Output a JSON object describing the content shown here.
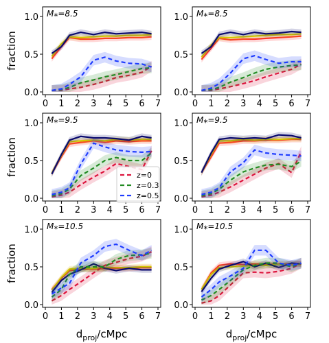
{
  "figure": {
    "ylabel": "fraction",
    "xlabel_main": "d",
    "xlabel_sub": "proj",
    "xlabel_tail": "/cMpc"
  },
  "legend": {
    "placement": "panel row 2 col 1, lower right",
    "entries": [
      {
        "label": "z=0",
        "color": "#dc143c"
      },
      {
        "label": "z=0.3",
        "color": "#228b22"
      },
      {
        "label": "z=0.5",
        "color": "#1e3cff"
      }
    ]
  },
  "colors": {
    "z0": "#dc143c",
    "z03": "#228b22",
    "z05": "#1e3cff",
    "solid_red": "#ff2a2a",
    "solid_yellow": "#d4c800",
    "solid_navy": "#0a0a6e"
  },
  "axes": {
    "xlim": [
      0,
      7
    ],
    "ylim": [
      0,
      1
    ],
    "xticks": [
      "0",
      "1",
      "2",
      "3",
      "4",
      "5",
      "6",
      "7"
    ],
    "yticks": [
      "0.0",
      "0.5",
      "1.0"
    ]
  },
  "chart_data": [
    {
      "type": "line",
      "row": 0,
      "col": 0,
      "annotation": "M⁎=8.5",
      "x": [
        0.4,
        1.0,
        1.5,
        2.2,
        3.0,
        3.7,
        4.4,
        5.2,
        6.0,
        6.6
      ],
      "solid": [
        {
          "color": "red",
          "values": [
            0.44,
            0.6,
            0.72,
            0.7,
            0.7,
            0.71,
            0.71,
            0.72,
            0.72,
            0.73
          ]
        },
        {
          "color": "yellow",
          "values": [
            0.47,
            0.64,
            0.73,
            0.72,
            0.73,
            0.74,
            0.74,
            0.75,
            0.75,
            0.76
          ]
        },
        {
          "color": "navy",
          "values": [
            0.51,
            0.6,
            0.75,
            0.79,
            0.76,
            0.79,
            0.77,
            0.78,
            0.79,
            0.77
          ]
        }
      ],
      "dashed": [
        {
          "color": "z0",
          "values": [
            0.02,
            0.02,
            0.04,
            0.06,
            0.1,
            0.14,
            0.19,
            0.22,
            0.26,
            0.34
          ]
        },
        {
          "color": "z03",
          "values": [
            0.02,
            0.03,
            0.06,
            0.12,
            0.16,
            0.2,
            0.23,
            0.27,
            0.31,
            0.32
          ]
        },
        {
          "color": "z05",
          "values": [
            0.02,
            0.04,
            0.1,
            0.2,
            0.42,
            0.46,
            0.41,
            0.38,
            0.37,
            0.33
          ]
        }
      ]
    },
    {
      "type": "line",
      "row": 0,
      "col": 1,
      "annotation": "M⁎=8.5",
      "x": [
        0.4,
        1.0,
        1.5,
        2.2,
        3.0,
        3.7,
        4.4,
        5.2,
        6.0,
        6.6
      ],
      "solid": [
        {
          "color": "red",
          "values": [
            0.43,
            0.58,
            0.71,
            0.69,
            0.7,
            0.7,
            0.71,
            0.72,
            0.73,
            0.74
          ]
        },
        {
          "color": "yellow",
          "values": [
            0.46,
            0.62,
            0.72,
            0.72,
            0.73,
            0.74,
            0.75,
            0.76,
            0.76,
            0.77
          ]
        },
        {
          "color": "navy",
          "values": [
            0.51,
            0.6,
            0.76,
            0.79,
            0.76,
            0.79,
            0.77,
            0.78,
            0.8,
            0.79
          ]
        }
      ],
      "dashed": [
        {
          "color": "z0",
          "values": [
            0.02,
            0.02,
            0.04,
            0.07,
            0.11,
            0.15,
            0.2,
            0.25,
            0.3,
            0.37
          ]
        },
        {
          "color": "z03",
          "values": [
            0.02,
            0.03,
            0.06,
            0.13,
            0.19,
            0.25,
            0.3,
            0.33,
            0.35,
            0.36
          ]
        },
        {
          "color": "z05",
          "values": [
            0.02,
            0.05,
            0.11,
            0.25,
            0.44,
            0.48,
            0.43,
            0.38,
            0.4,
            0.4
          ]
        }
      ]
    },
    {
      "type": "line",
      "row": 1,
      "col": 0,
      "annotation": "M⁎=9.5",
      "x": [
        0.4,
        1.0,
        1.5,
        2.2,
        3.0,
        3.7,
        4.4,
        5.2,
        6.0,
        6.6
      ],
      "solid": [
        {
          "color": "red",
          "values": [
            0.33,
            0.55,
            0.72,
            0.74,
            0.76,
            0.74,
            0.76,
            0.75,
            0.76,
            0.76
          ]
        },
        {
          "color": "yellow",
          "values": [
            0.33,
            0.57,
            0.75,
            0.76,
            0.77,
            0.76,
            0.78,
            0.77,
            0.78,
            0.78
          ]
        },
        {
          "color": "navy",
          "values": [
            0.32,
            0.58,
            0.77,
            0.82,
            0.8,
            0.8,
            0.79,
            0.77,
            0.82,
            0.8
          ]
        }
      ],
      "dashed": [
        {
          "color": "z0",
          "values": [
            0.02,
            0.04,
            0.08,
            0.18,
            0.28,
            0.36,
            0.46,
            0.42,
            0.38,
            0.63
          ]
        },
        {
          "color": "z03",
          "values": [
            0.03,
            0.06,
            0.12,
            0.3,
            0.4,
            0.5,
            0.54,
            0.5,
            0.5,
            0.6
          ]
        },
        {
          "color": "z05",
          "values": [
            0.05,
            0.08,
            0.14,
            0.45,
            0.73,
            0.68,
            0.64,
            0.62,
            0.61,
            0.62
          ]
        }
      ]
    },
    {
      "type": "line",
      "row": 1,
      "col": 1,
      "annotation": "M⁎=9.5",
      "x": [
        0.4,
        1.0,
        1.5,
        2.2,
        3.0,
        3.7,
        4.4,
        5.2,
        6.0,
        6.6
      ],
      "solid": [
        {
          "color": "red",
          "values": [
            0.34,
            0.55,
            0.73,
            0.74,
            0.76,
            0.76,
            0.77,
            0.77,
            0.78,
            0.78
          ]
        },
        {
          "color": "yellow",
          "values": [
            0.34,
            0.58,
            0.76,
            0.76,
            0.78,
            0.77,
            0.78,
            0.78,
            0.79,
            0.79
          ]
        },
        {
          "color": "navy",
          "values": [
            0.34,
            0.6,
            0.78,
            0.8,
            0.79,
            0.8,
            0.79,
            0.84,
            0.83,
            0.8
          ]
        }
      ],
      "dashed": [
        {
          "color": "z0",
          "values": [
            0.02,
            0.04,
            0.08,
            0.15,
            0.24,
            0.32,
            0.4,
            0.46,
            0.34,
            0.62
          ]
        },
        {
          "color": "z03",
          "values": [
            0.03,
            0.06,
            0.12,
            0.24,
            0.35,
            0.4,
            0.44,
            0.45,
            0.42,
            0.49
          ]
        },
        {
          "color": "z05",
          "values": [
            0.05,
            0.08,
            0.14,
            0.35,
            0.47,
            0.64,
            0.6,
            0.58,
            0.57,
            0.56
          ]
        }
      ]
    },
    {
      "type": "line",
      "row": 2,
      "col": 0,
      "annotation": "M⁎=10.5",
      "x": [
        0.4,
        1.0,
        1.5,
        2.2,
        3.0,
        3.7,
        4.4,
        5.2,
        6.0,
        6.6
      ],
      "solid": [
        {
          "color": "red",
          "values": [
            0.2,
            0.35,
            0.45,
            0.47,
            0.47,
            0.48,
            0.48,
            0.48,
            0.49,
            0.49
          ]
        },
        {
          "color": "yellow",
          "values": [
            0.19,
            0.36,
            0.47,
            0.48,
            0.48,
            0.49,
            0.49,
            0.49,
            0.5,
            0.5
          ]
        },
        {
          "color": "navy",
          "values": [
            0.16,
            0.32,
            0.4,
            0.46,
            0.54,
            0.48,
            0.45,
            0.48,
            0.46,
            0.46
          ]
        }
      ],
      "dashed": [
        {
          "color": "z0",
          "values": [
            0.05,
            0.12,
            0.2,
            0.3,
            0.42,
            0.52,
            0.56,
            0.61,
            0.64,
            0.7
          ]
        },
        {
          "color": "z03",
          "values": [
            0.1,
            0.2,
            0.4,
            0.5,
            0.5,
            0.5,
            0.6,
            0.65,
            0.66,
            0.68
          ]
        },
        {
          "color": "z05",
          "values": [
            0.14,
            0.22,
            0.28,
            0.55,
            0.65,
            0.77,
            0.8,
            0.72,
            0.65,
            0.72
          ]
        }
      ]
    },
    {
      "type": "line",
      "row": 2,
      "col": 1,
      "annotation": "M⁎=10.5",
      "x": [
        0.4,
        1.0,
        1.5,
        2.2,
        3.0,
        3.7,
        4.4,
        5.2,
        6.0,
        6.6
      ],
      "solid": [
        {
          "color": "red",
          "values": [
            0.2,
            0.42,
            0.52,
            0.54,
            0.53,
            0.54,
            0.53,
            0.54,
            0.54,
            0.54
          ]
        },
        {
          "color": "yellow",
          "values": [
            0.2,
            0.4,
            0.49,
            0.5,
            0.51,
            0.52,
            0.52,
            0.53,
            0.53,
            0.53
          ]
        },
        {
          "color": "navy",
          "values": [
            0.17,
            0.35,
            0.47,
            0.52,
            0.57,
            0.5,
            0.55,
            0.49,
            0.55,
            0.54
          ]
        }
      ],
      "dashed": [
        {
          "color": "z0",
          "values": [
            0.02,
            0.05,
            0.12,
            0.26,
            0.42,
            0.43,
            0.42,
            0.44,
            0.48,
            0.55
          ]
        },
        {
          "color": "z03",
          "values": [
            0.06,
            0.12,
            0.2,
            0.32,
            0.46,
            0.52,
            0.55,
            0.55,
            0.5,
            0.55
          ]
        },
        {
          "color": "z05",
          "values": [
            0.1,
            0.2,
            0.3,
            0.38,
            0.48,
            0.72,
            0.72,
            0.55,
            0.52,
            0.55
          ]
        }
      ]
    }
  ]
}
